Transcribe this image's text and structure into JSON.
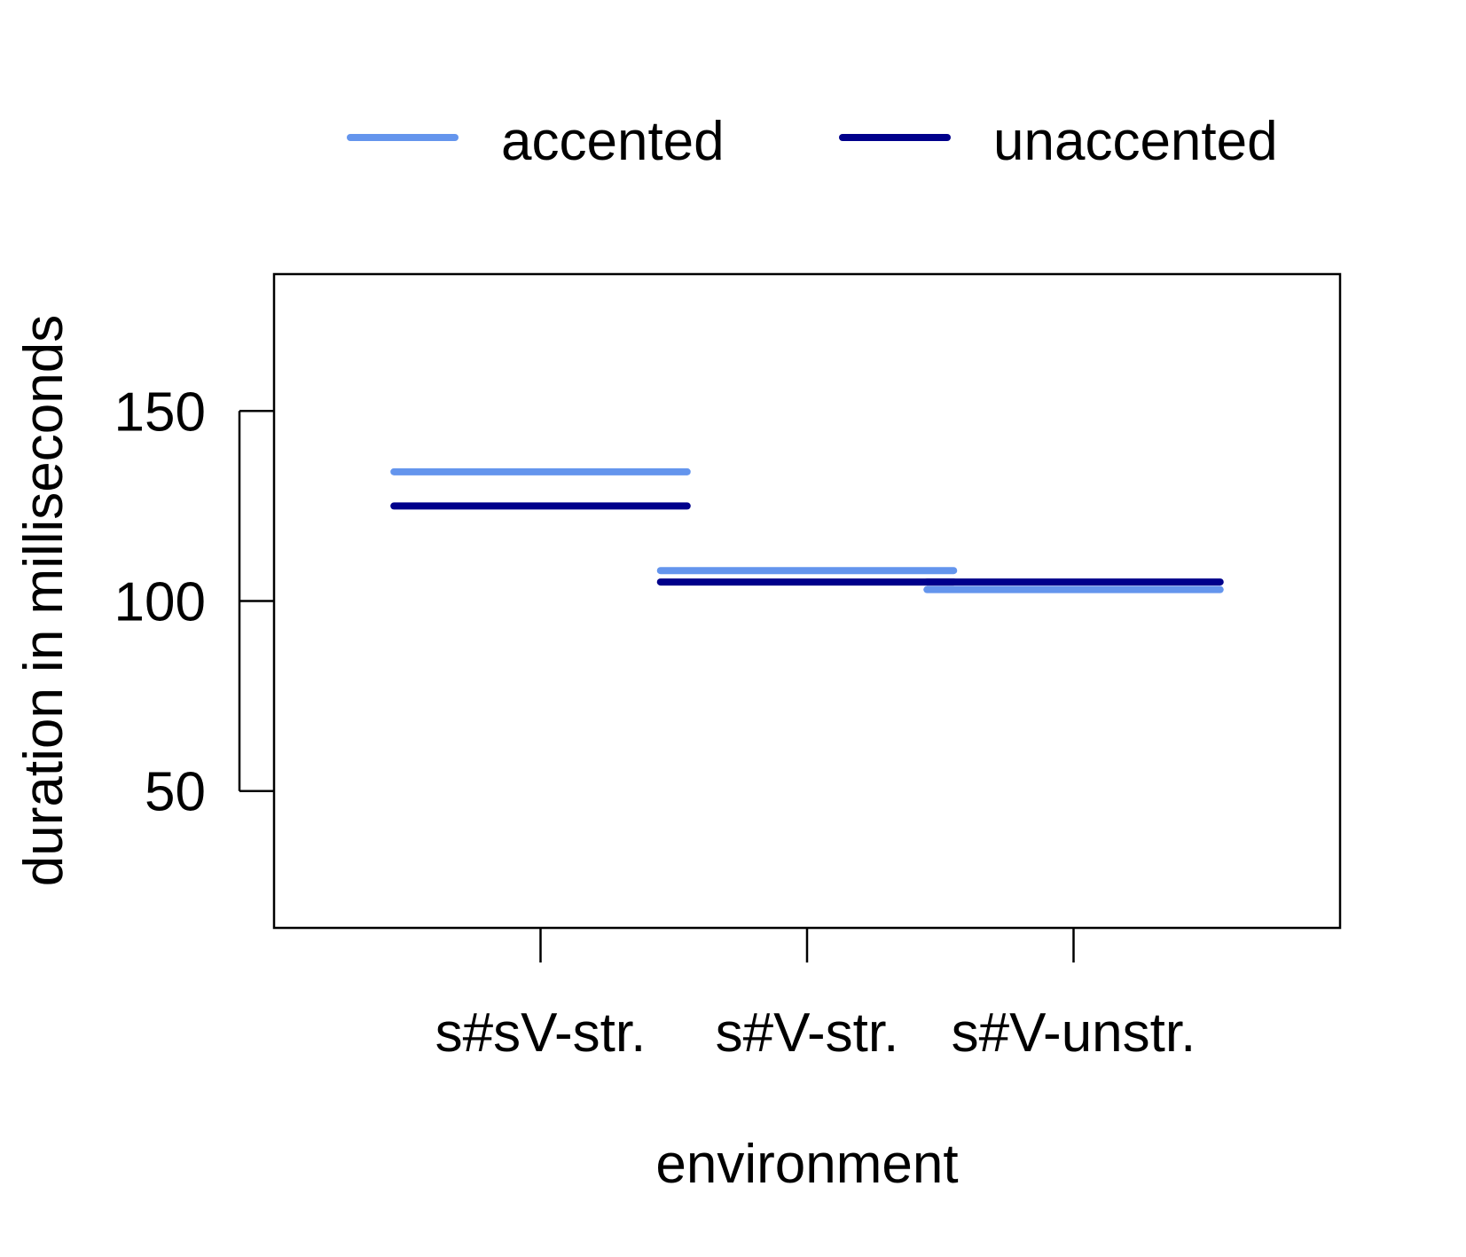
{
  "chart_data": {
    "type": "line",
    "xlabel": "environment",
    "ylabel": "duration in milliseconds",
    "categories": [
      "s#sV-str.",
      "s#V-str.",
      "s#V-unstr."
    ],
    "yticks": [
      50,
      100,
      150
    ],
    "ylim": [
      14,
      186
    ],
    "grid": false,
    "legend_position": "top",
    "series": [
      {
        "name": "accented",
        "color": "#6495ED",
        "values": [
          134,
          108,
          103
        ]
      },
      {
        "name": "unaccented",
        "color": "#00008B",
        "values": [
          125,
          105,
          105
        ]
      }
    ]
  }
}
